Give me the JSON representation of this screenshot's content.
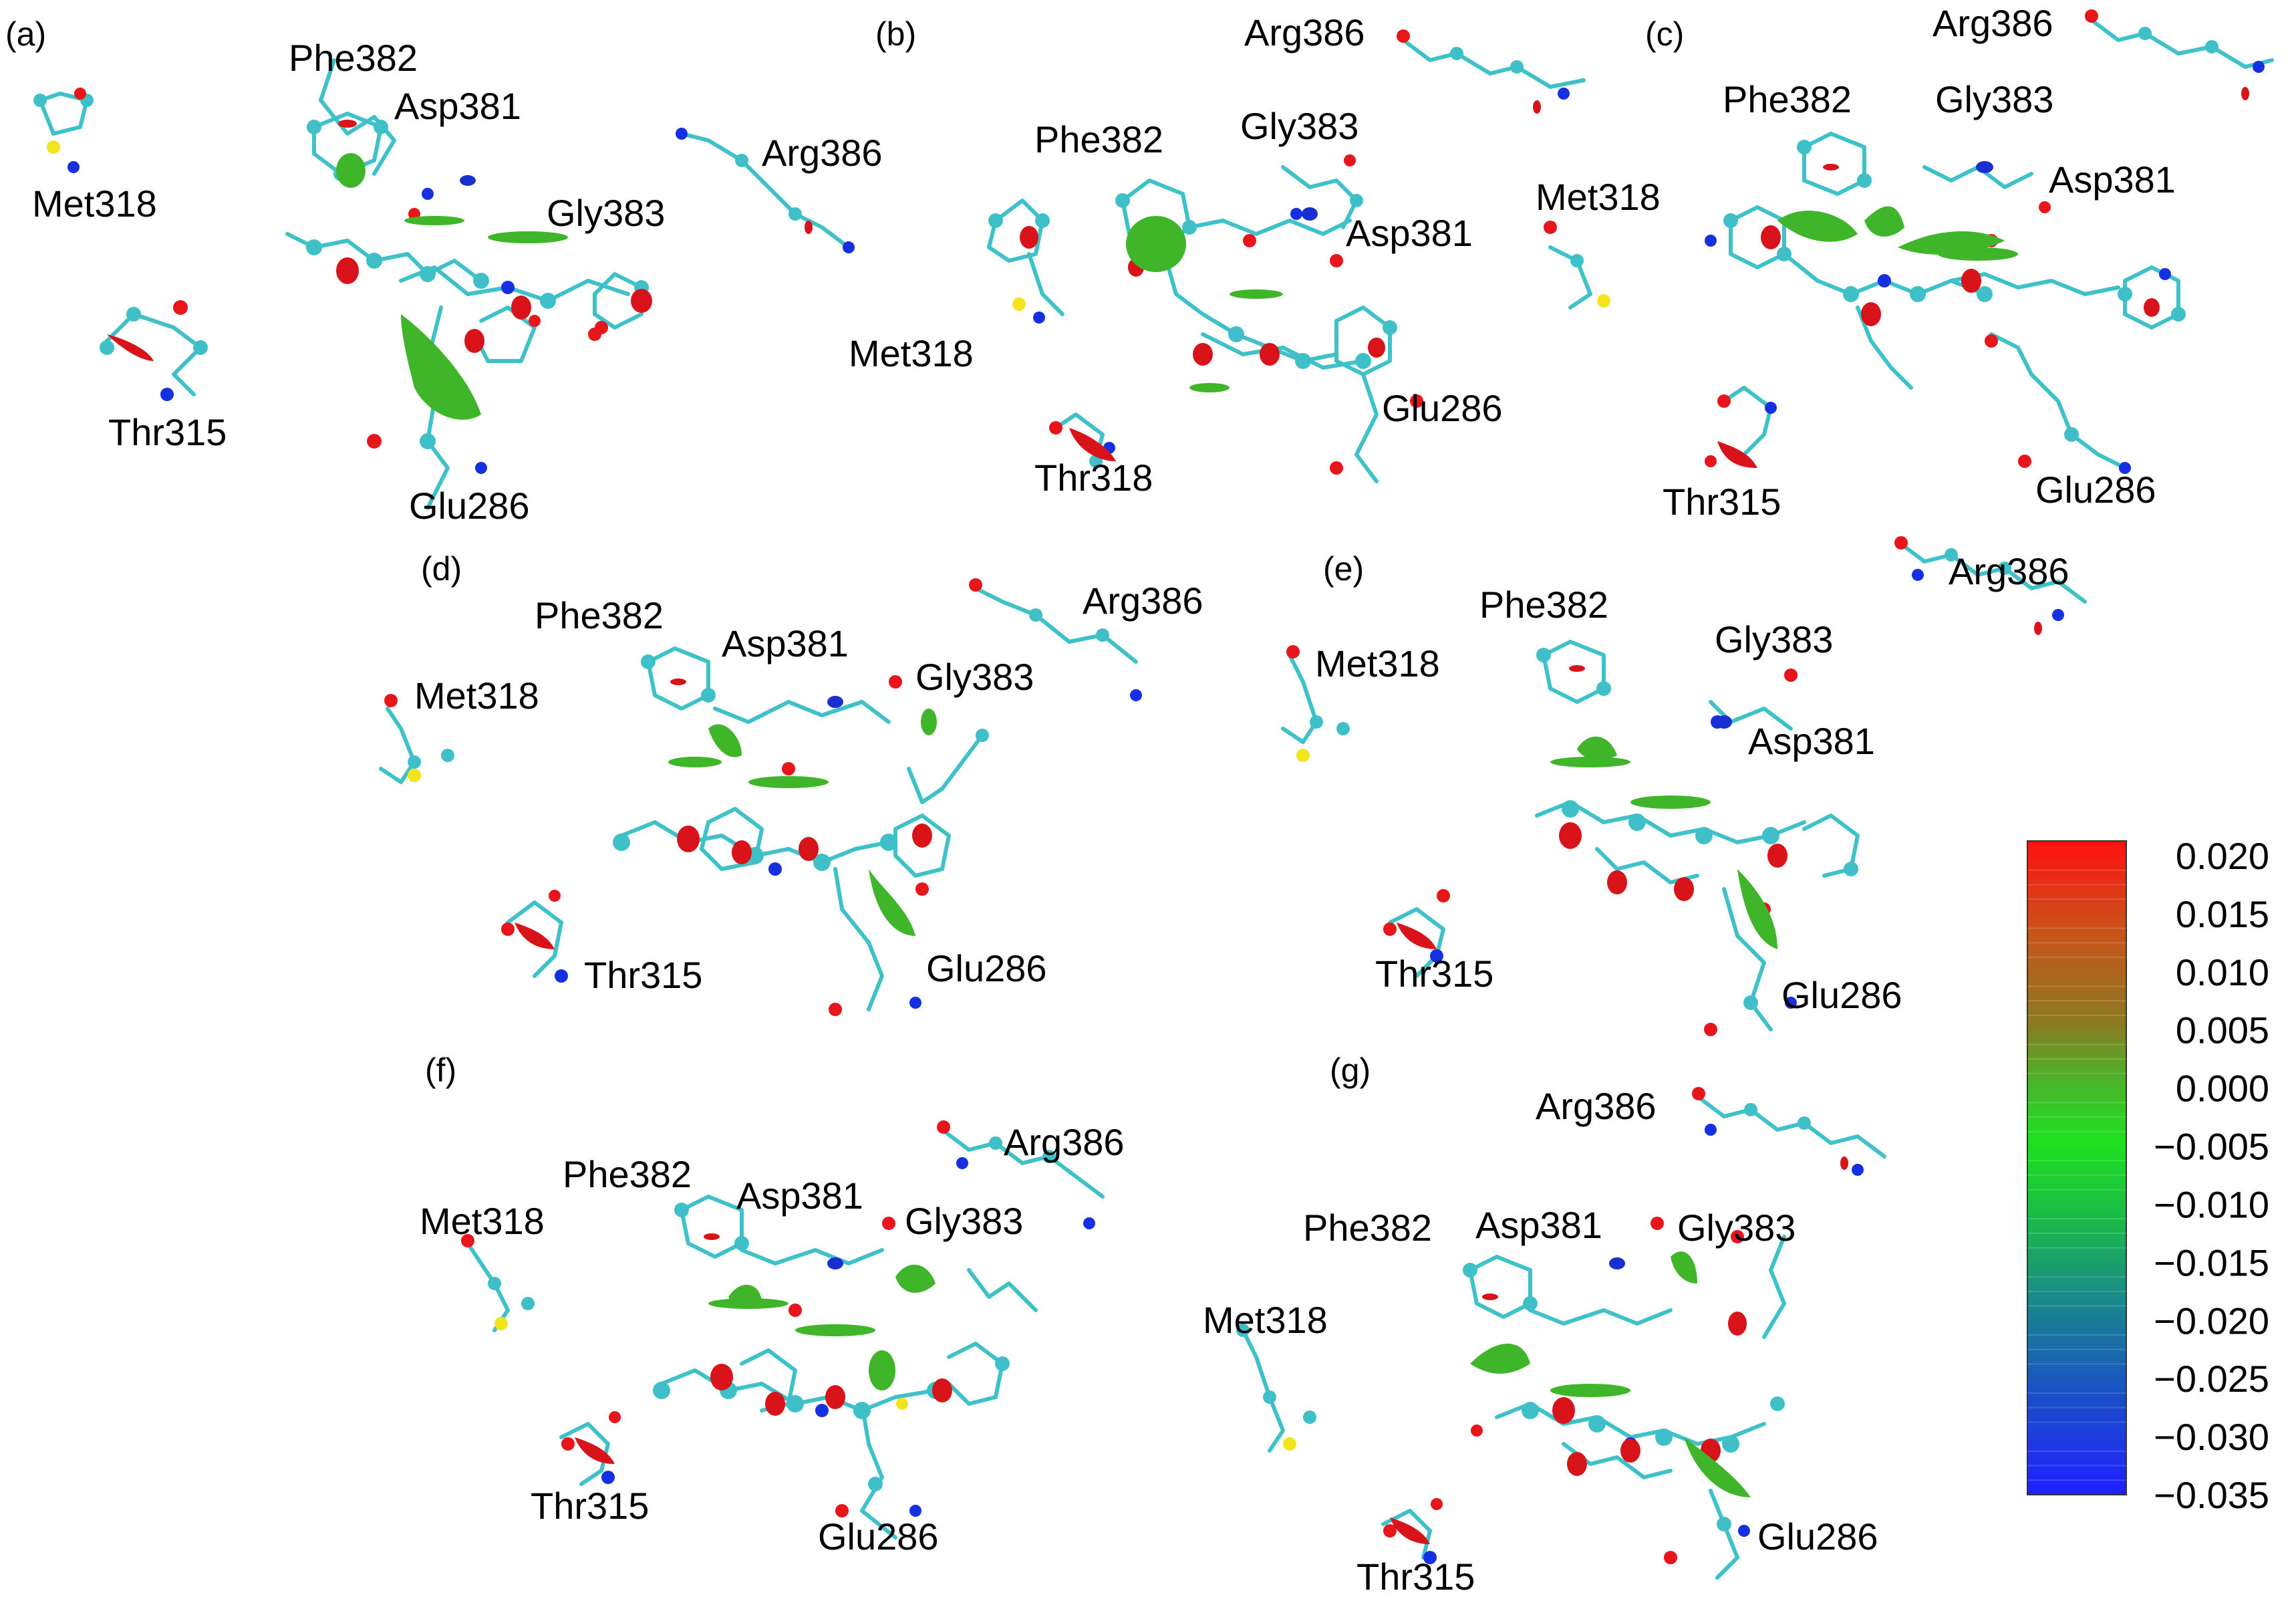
{
  "panels": [
    {
      "id": "a",
      "tag": "(a)",
      "labels": [
        "Phe382",
        "Asp381",
        "Arg386",
        "Met318",
        "Gly383",
        "Thr315",
        "Glu286"
      ]
    },
    {
      "id": "b",
      "tag": "(b)",
      "labels": [
        "Arg386",
        "Phe382",
        "Gly383",
        "Asp381",
        "Met318",
        "Glu286",
        "Thr318"
      ]
    },
    {
      "id": "c",
      "tag": "(c)",
      "labels": [
        "Arg386",
        "Phe382",
        "Gly383",
        "Asp381",
        "Met318",
        "Thr315",
        "Glu286"
      ]
    },
    {
      "id": "d",
      "tag": "(d)",
      "labels": [
        "Phe382",
        "Asp381",
        "Arg386",
        "Met318",
        "Gly383",
        "Thr315",
        "Glu286"
      ]
    },
    {
      "id": "e",
      "tag": "(e)",
      "labels": [
        "Phe382",
        "Arg386",
        "Met318",
        "Gly383",
        "Asp381",
        "Thr315",
        "Glu286"
      ]
    },
    {
      "id": "f",
      "tag": "(f)",
      "labels": [
        "Arg386",
        "Phe382",
        "Asp381",
        "Met318",
        "Gly383",
        "Thr315",
        "Glu286"
      ]
    },
    {
      "id": "g",
      "tag": "(g)",
      "labels": [
        "Arg386",
        "Phe382",
        "Asp381",
        "Gly383",
        "Met318",
        "Glu286",
        "Thr315"
      ]
    }
  ],
  "colorbar": {
    "ticks": [
      "0.020",
      "0.015",
      "0.010",
      "0.005",
      "0.000",
      "−0.005",
      "−0.010",
      "−0.015",
      "−0.020",
      "−0.025",
      "−0.030",
      "−0.035"
    ],
    "max": 0.02,
    "min": -0.035,
    "colors": [
      "#ff0000",
      "#c8621a",
      "#6f8a2a",
      "#27cf27",
      "#1ad21a",
      "#1c9a80",
      "#1f4bd0",
      "#2020ff"
    ]
  },
  "atom_colors": {
    "carbon": "#3fc0c8",
    "oxygen": "#e8151a",
    "nitrogen": "#1530e0",
    "sulfur": "#f2e51e"
  }
}
